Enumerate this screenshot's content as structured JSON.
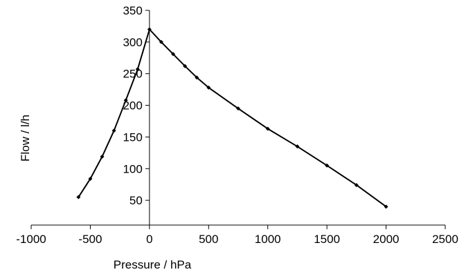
{
  "chart_data": {
    "type": "line",
    "title": "",
    "xlabel": "Pressure / hPa",
    "ylabel": "Flow / l/h",
    "xlim": [
      -1000,
      2500
    ],
    "ylim": [
      0,
      350
    ],
    "x_ticks": [
      -1000,
      -500,
      0,
      500,
      1000,
      1500,
      2000,
      2500
    ],
    "y_ticks": [
      50,
      100,
      150,
      200,
      250,
      300,
      350
    ],
    "grid": false,
    "legend": "none",
    "line_color": "#000000",
    "marker": "diamond",
    "series": [
      {
        "x": [
          -600,
          -500,
          -400,
          -300,
          -200,
          -100,
          0,
          100,
          200,
          300,
          400,
          500,
          750,
          1000,
          1250,
          1500,
          1750,
          2000
        ],
        "y": [
          55,
          84,
          119,
          160,
          208,
          257,
          320,
          300,
          281,
          262,
          244,
          228,
          195,
          163,
          135,
          105,
          74,
          40
        ]
      }
    ]
  }
}
